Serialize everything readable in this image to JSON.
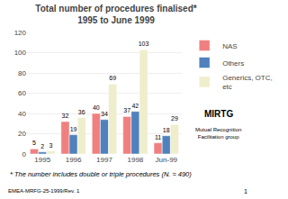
{
  "chart_data": {
    "type": "bar",
    "title": "Total number of procedures finalised*",
    "subtitle": "1995 to June 1999",
    "categories": [
      "1995",
      "1996",
      "1997",
      "1998",
      "Jun-99"
    ],
    "series": [
      {
        "name": "NAS",
        "color": "#f08080",
        "values": [
          5,
          32,
          40,
          37,
          11
        ]
      },
      {
        "name": "Others",
        "color": "#4f81bd",
        "values": [
          2,
          19,
          34,
          42,
          18
        ]
      },
      {
        "name": "Generics, OTC,\netc",
        "color": "#eeeecc",
        "values": [
          3,
          36,
          69,
          103,
          29
        ]
      }
    ],
    "ylim": [
      0,
      120
    ],
    "yticks": [
      0,
      20,
      40,
      60,
      80,
      100,
      120
    ],
    "grid": true,
    "legend": "right",
    "data_labels": true,
    "annotations": [
      "* The number includes double or triple procedures (N. ≈ 490)",
      "MIRTG",
      "Mutual Recognition\nFacilitation group",
      "EMEA-MRFG-25-1999/Rev. 1",
      "1"
    ]
  }
}
